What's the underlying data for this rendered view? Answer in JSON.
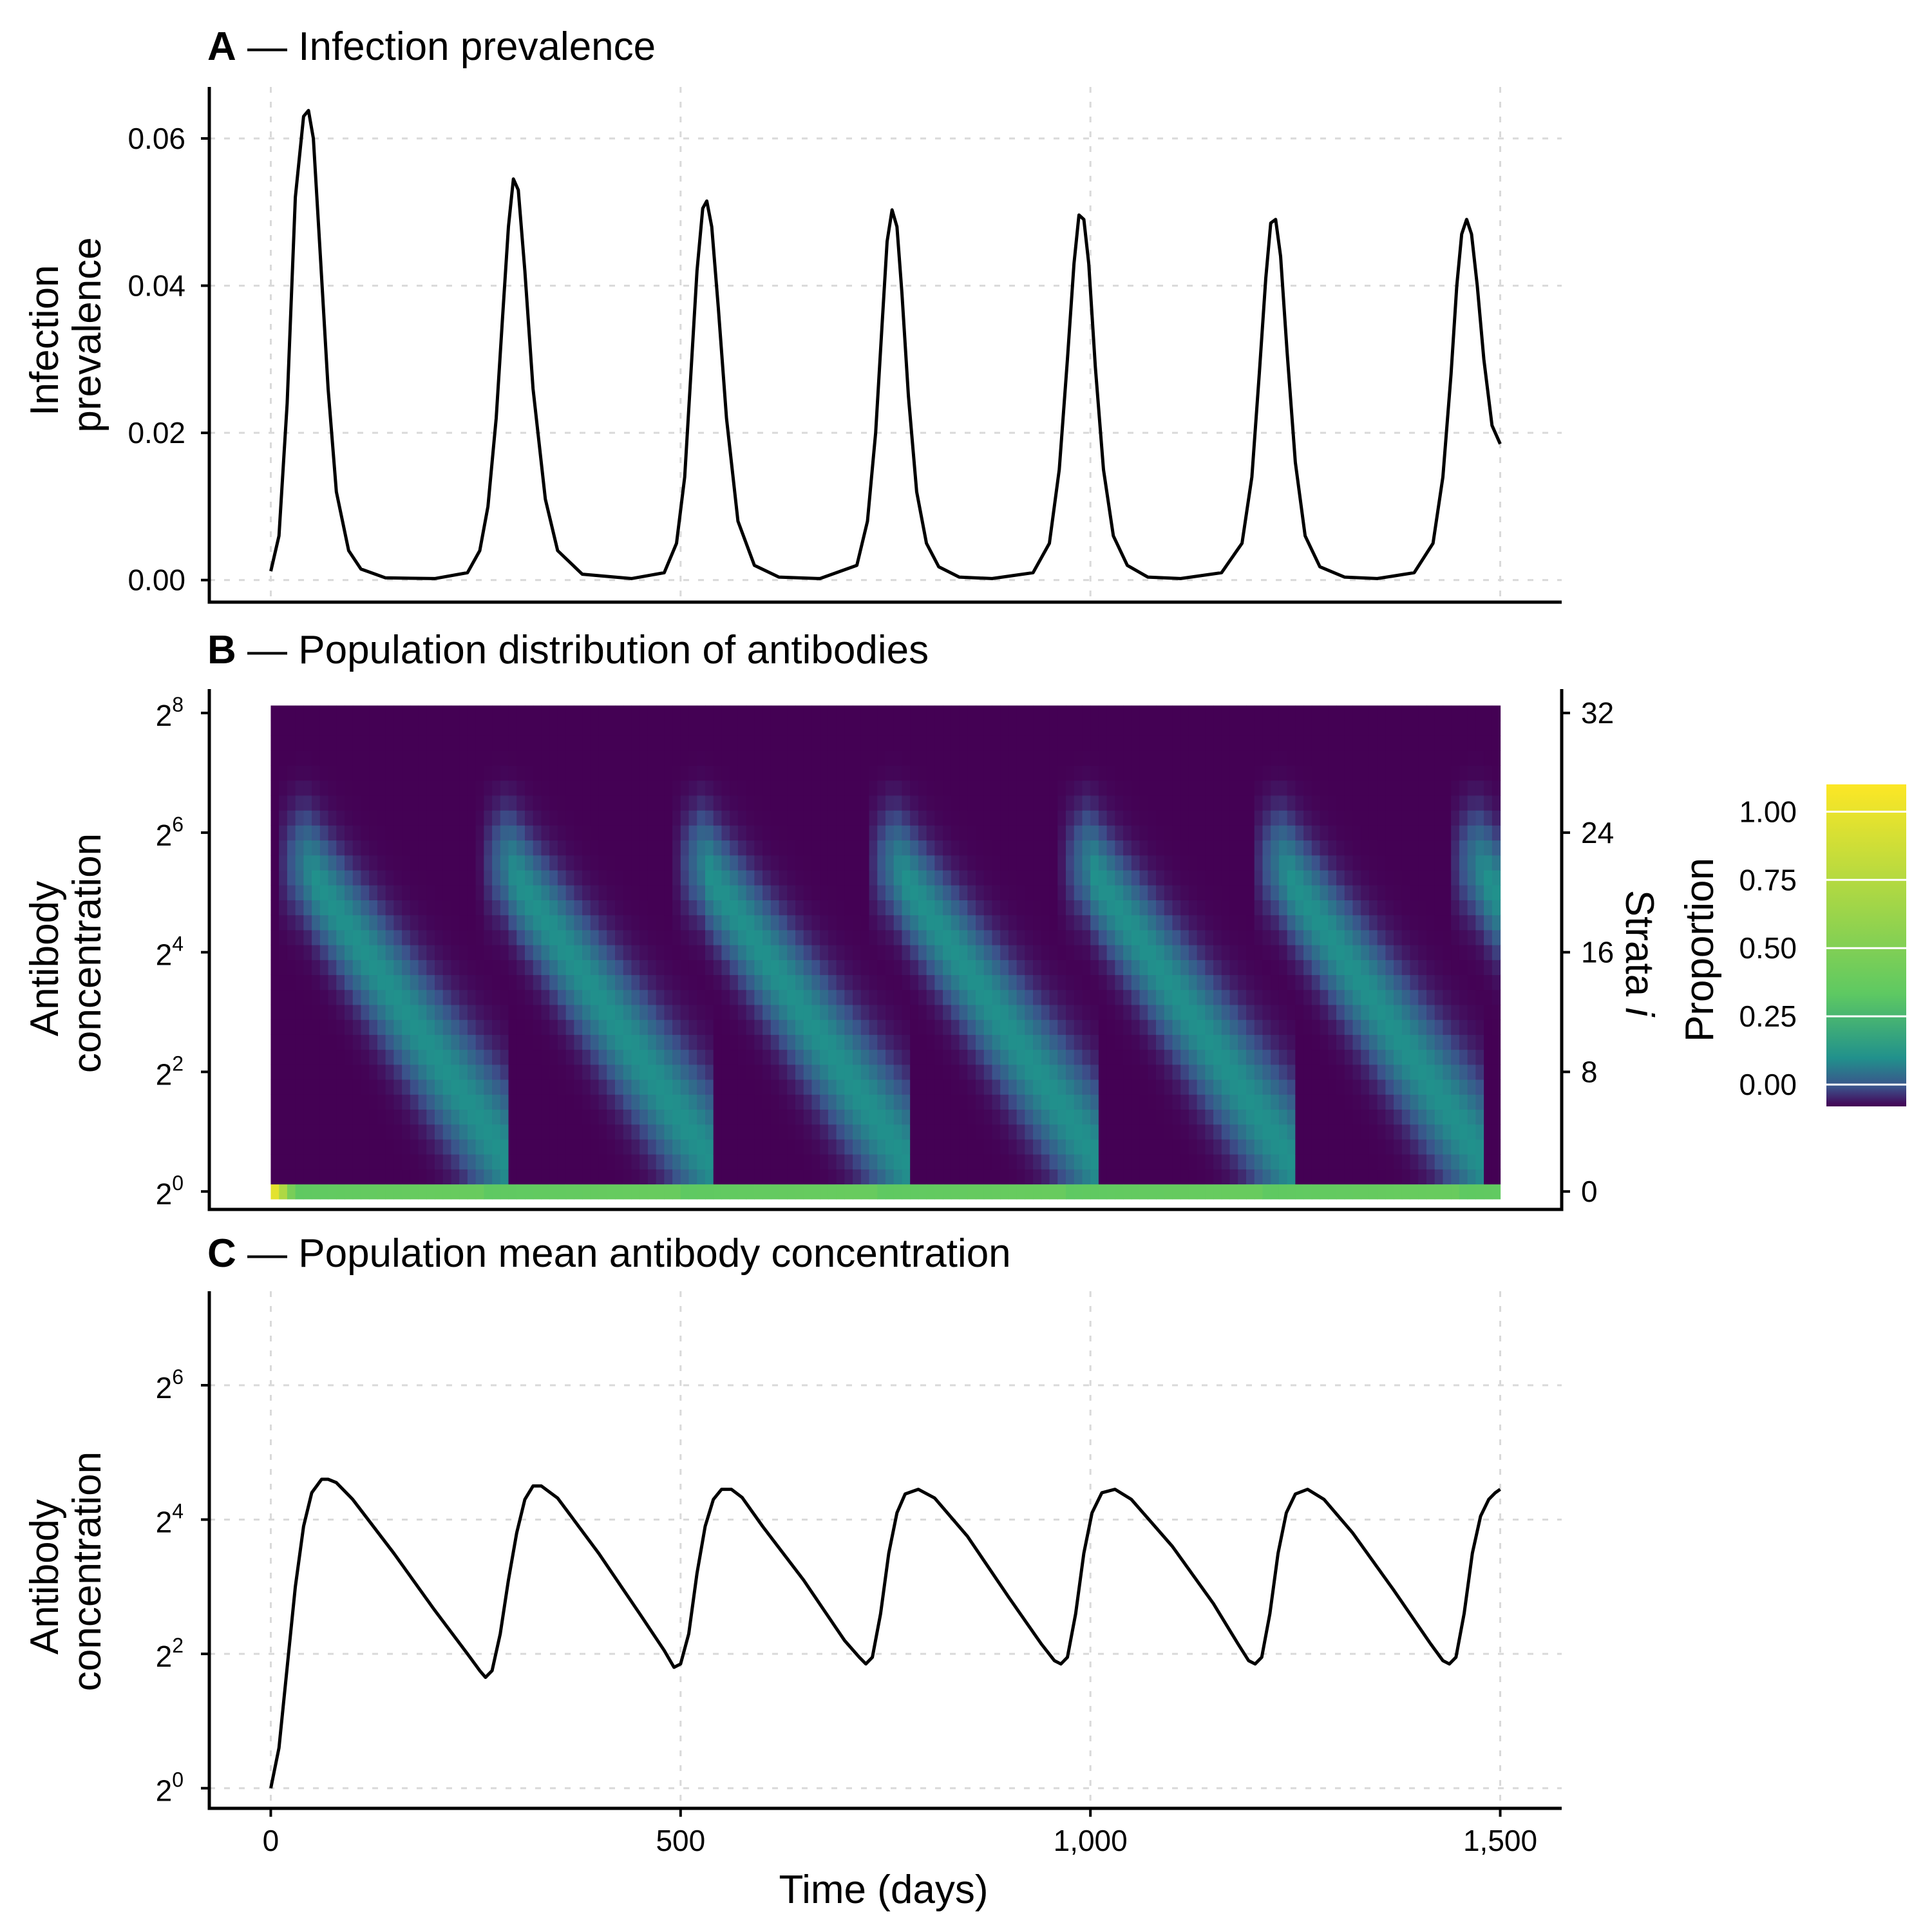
{
  "colors": {
    "line": "#000000",
    "grid": "#d9d9d9",
    "viridis": [
      "#440154",
      "#3b528b",
      "#21918c",
      "#5ec962",
      "#fde725"
    ]
  },
  "chart_data": [
    {
      "panel": "A",
      "type": "line",
      "title": "Infection prevalence",
      "ylabel": [
        "Infection",
        "prevalence"
      ],
      "xlim": [
        -75,
        1575
      ],
      "ylim": [
        -0.003,
        0.067
      ],
      "yticks": [
        "0.00",
        "0.02",
        "0.04",
        "0.06"
      ],
      "ytick_values": [
        0.0,
        0.02,
        0.04,
        0.06
      ],
      "grid": true,
      "series": [
        {
          "x": [
            0,
            10,
            20,
            30,
            40,
            46,
            52,
            60,
            70,
            80,
            95,
            110,
            140,
            200,
            240,
            255,
            265,
            275,
            283,
            290,
            296,
            302,
            310,
            320,
            335,
            350,
            380,
            440,
            480,
            495,
            505,
            512,
            520,
            527,
            532,
            538,
            546,
            556,
            570,
            590,
            620,
            670,
            715,
            728,
            738,
            746,
            752,
            758,
            764,
            770,
            778,
            788,
            800,
            815,
            840,
            880,
            930,
            950,
            962,
            972,
            980,
            986,
            992,
            998,
            1006,
            1016,
            1028,
            1045,
            1070,
            1110,
            1160,
            1185,
            1197,
            1206,
            1214,
            1220,
            1226,
            1232,
            1240,
            1250,
            1262,
            1280,
            1310,
            1350,
            1395,
            1418,
            1430,
            1440,
            1447,
            1453,
            1459,
            1465,
            1472,
            1480,
            1490,
            1500
          ],
          "y": [
            0.0012,
            0.006,
            0.024,
            0.052,
            0.063,
            0.0638,
            0.06,
            0.045,
            0.026,
            0.012,
            0.004,
            0.0015,
            0.0003,
            0.0002,
            0.001,
            0.004,
            0.01,
            0.022,
            0.036,
            0.048,
            0.0545,
            0.053,
            0.042,
            0.026,
            0.011,
            0.004,
            0.0008,
            0.0002,
            0.001,
            0.005,
            0.014,
            0.027,
            0.042,
            0.0505,
            0.0515,
            0.048,
            0.037,
            0.022,
            0.008,
            0.002,
            0.0004,
            0.0002,
            0.002,
            0.008,
            0.02,
            0.035,
            0.046,
            0.0503,
            0.048,
            0.039,
            0.025,
            0.012,
            0.005,
            0.0018,
            0.0004,
            0.0002,
            0.001,
            0.005,
            0.015,
            0.03,
            0.043,
            0.0496,
            0.049,
            0.043,
            0.029,
            0.015,
            0.006,
            0.002,
            0.0004,
            0.0002,
            0.001,
            0.005,
            0.014,
            0.028,
            0.041,
            0.0485,
            0.049,
            0.044,
            0.031,
            0.016,
            0.006,
            0.0018,
            0.0004,
            0.0002,
            0.001,
            0.005,
            0.014,
            0.028,
            0.04,
            0.047,
            0.049,
            0.047,
            0.04,
            0.03,
            0.021,
            0.0185
          ]
        }
      ]
    },
    {
      "panel": "B",
      "type": "heatmap",
      "title": "Population distribution of antibodies",
      "ylabel": [
        "Antibody",
        "concentration"
      ],
      "ylabel_right": "Strata i",
      "xlim": [
        -75,
        1575
      ],
      "ylim_log2": [
        -0.3,
        8.4
      ],
      "yticks_log2": [
        0,
        2,
        4,
        6,
        8
      ],
      "yticks_right": [
        "0",
        "8",
        "16",
        "24",
        "32"
      ],
      "strata": 33,
      "x_range": [
        0,
        1500
      ],
      "wave_starts": [
        15,
        262,
        500,
        735,
        970,
        1205,
        1445
      ],
      "colorbar": {
        "label": "Proportion",
        "ticks": [
          "0.00",
          "0.25",
          "0.50",
          "0.75",
          "1.00"
        ],
        "tick_values": [
          0.0,
          0.25,
          0.5,
          0.75,
          1.0
        ],
        "limits": [
          -0.08,
          1.1
        ]
      }
    },
    {
      "panel": "C",
      "type": "line",
      "title": "Population mean antibody concentration",
      "ylabel": [
        "Antibody",
        "concentration"
      ],
      "xlabel": "Time (days)",
      "xlim": [
        -75,
        1575
      ],
      "xticks": [
        "0",
        "500",
        "1,000",
        "1,500"
      ],
      "xtick_values": [
        0,
        500,
        1000,
        1500
      ],
      "ylim_log2": [
        -0.3,
        7.4
      ],
      "yticks_log2": [
        0,
        2,
        4,
        6
      ],
      "grid": true,
      "series": [
        {
          "x": [
            0,
            10,
            20,
            30,
            40,
            50,
            62,
            70,
            80,
            100,
            150,
            200,
            240,
            255,
            262,
            270,
            280,
            290,
            300,
            310,
            320,
            330,
            350,
            400,
            450,
            480,
            492,
            500,
            510,
            520,
            530,
            540,
            550,
            562,
            575,
            600,
            650,
            700,
            718,
            726,
            734,
            744,
            754,
            764,
            774,
            790,
            810,
            850,
            900,
            940,
            956,
            964,
            972,
            982,
            992,
            1002,
            1014,
            1030,
            1050,
            1100,
            1150,
            1180,
            1193,
            1201,
            1209,
            1219,
            1229,
            1239,
            1250,
            1265,
            1285,
            1320,
            1370,
            1415,
            1430,
            1438,
            1446,
            1456,
            1466,
            1476,
            1486,
            1494,
            1500
          ],
          "y_log2": [
            0.0,
            0.6,
            1.8,
            3.0,
            3.9,
            4.4,
            4.6,
            4.6,
            4.55,
            4.3,
            3.5,
            2.65,
            2.0,
            1.75,
            1.65,
            1.75,
            2.3,
            3.1,
            3.8,
            4.3,
            4.5,
            4.5,
            4.32,
            3.5,
            2.6,
            2.05,
            1.8,
            1.85,
            2.3,
            3.2,
            3.9,
            4.3,
            4.45,
            4.45,
            4.33,
            3.9,
            3.1,
            2.2,
            1.95,
            1.85,
            1.95,
            2.6,
            3.5,
            4.1,
            4.38,
            4.45,
            4.32,
            3.75,
            2.85,
            2.15,
            1.9,
            1.85,
            1.95,
            2.6,
            3.5,
            4.1,
            4.4,
            4.45,
            4.3,
            3.6,
            2.75,
            2.15,
            1.9,
            1.85,
            1.95,
            2.6,
            3.5,
            4.1,
            4.38,
            4.45,
            4.3,
            3.8,
            2.95,
            2.15,
            1.9,
            1.85,
            1.95,
            2.6,
            3.5,
            4.05,
            4.3,
            4.4,
            4.45
          ]
        }
      ]
    }
  ],
  "panels": {
    "a": {
      "letter": "A",
      "dash": " — ",
      "title": "Infection prevalence"
    },
    "b": {
      "letter": "B",
      "dash": " — ",
      "title": "Population distribution of antibodies"
    },
    "c": {
      "letter": "C",
      "dash": " — ",
      "title": "Population mean antibody concentration"
    }
  },
  "axes": {
    "a_ylabel": [
      "Infection",
      "prevalence"
    ],
    "b_ylabel": [
      "Antibody",
      "concentration"
    ],
    "b_ylabel_right": "Strata",
    "b_ylabel_right_italic": "i",
    "c_ylabel": [
      "Antibody",
      "concentration"
    ],
    "xlabel": "Time (days)",
    "pow_base": "2",
    "legend_title": "Proportion"
  }
}
